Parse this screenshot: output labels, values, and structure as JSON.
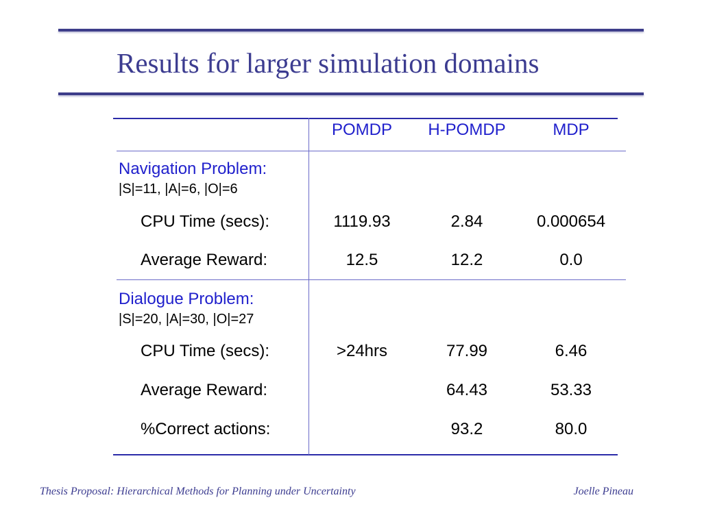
{
  "slide": {
    "title": "Results for larger simulation domains"
  },
  "table": {
    "columns": [
      "POMDP",
      "H-POMDP",
      "MDP"
    ],
    "sections": [
      {
        "heading": "Navigation Problem:",
        "subheading": "|S|=11, |A|=6, |O|=6",
        "rows": [
          {
            "label": "CPU Time (secs):",
            "values": [
              "1119.93",
              "2.84",
              "0.000654"
            ]
          },
          {
            "label": "Average Reward:",
            "values": [
              "12.5",
              "12.2",
              "0.0"
            ]
          }
        ]
      },
      {
        "heading": "Dialogue Problem:",
        "subheading": "|S|=20, |A|=30, |O|=27",
        "rows": [
          {
            "label": "CPU Time (secs):",
            "values": [
              ">24hrs",
              "77.99",
              "6.46"
            ]
          },
          {
            "label": "Average Reward:",
            "values": [
              "",
              "64.43",
              "53.33"
            ]
          },
          {
            "label": "%Correct actions:",
            "values": [
              "",
              "93.2",
              "80.0"
            ]
          }
        ]
      }
    ]
  },
  "footer": {
    "left": "Thesis Proposal: Hierarchical Methods for Planning under Uncertainty",
    "right": "Joelle Pineau"
  },
  "colors": {
    "title": "#3c3c90",
    "heading_blue": "#1f1fcc",
    "rule": "#3d3d8a"
  }
}
